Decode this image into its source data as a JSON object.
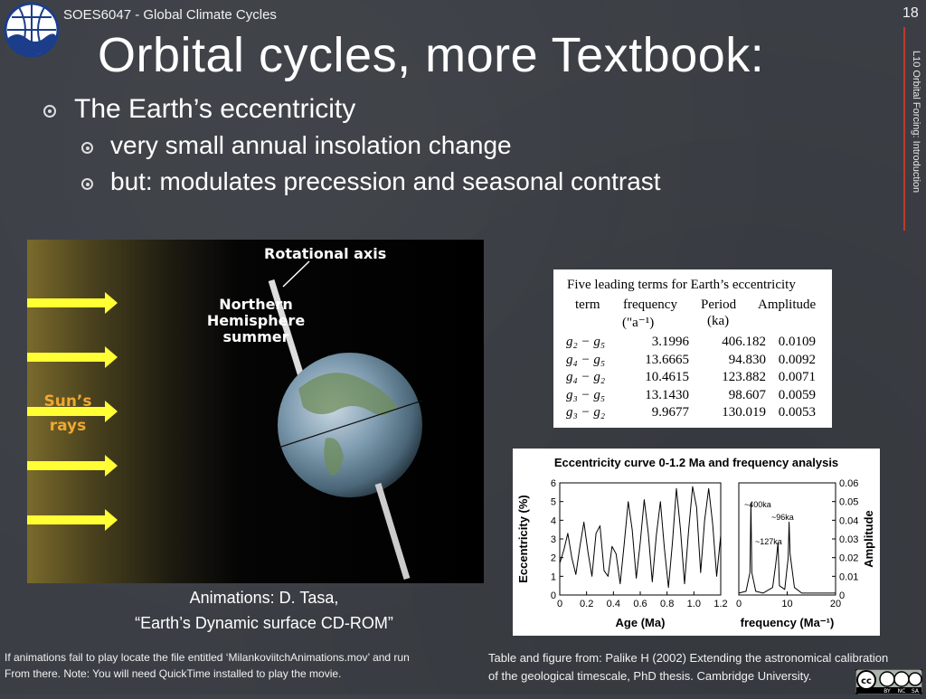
{
  "header": {
    "course": "SOES6047 - Global Climate Cycles",
    "slide_number": "18",
    "title": "Orbital cycles, more Textbook:",
    "side_label": "L10 Orbital Forcing: Introduction"
  },
  "bullets": {
    "main": "The Earth’s eccentricity",
    "sub1": "very small annual insolation change",
    "sub2": "but: modulates precession and seasonal contrast"
  },
  "earth_figure": {
    "rotational_axis": "Rotational axis",
    "nh_line1": "Northern",
    "nh_line2": "Hemisphere",
    "nh_line3": "summer",
    "sun_line1": "Sun’s",
    "sun_line2": "rays",
    "sun_color": "#f0a830",
    "arrow_color": "#ffff33"
  },
  "credits": {
    "animation_line1": "Animations: D. Tasa,",
    "animation_line2": "“Earth’s Dynamic surface CD-ROM”",
    "bottom_left_line1": "If animations fail to play locate the file entitled ‘MilankoviitchAnimations.mov’ and run",
    "bottom_left_line2": "From there. Note: You will need QuickTime installed to play the movie.",
    "bottom_right_line1": "Table and figure from: Palike H (2002) Extending the astronomical calibration",
    "bottom_right_line2": "of the geological timescale, PhD thesis. Cambridge University."
  },
  "table": {
    "caption": "Five leading terms for Earth’s eccentricity",
    "headers": [
      "term",
      "frequency",
      "Period",
      "Amplitude"
    ],
    "sub_headers": [
      "",
      "(\"a⁻¹)",
      "(ka)",
      ""
    ],
    "rows": [
      [
        "g₂ − g₅",
        "3.1996",
        "406.182",
        "0.0109"
      ],
      [
        "g₄ − g₅",
        "13.6665",
        "94.830",
        "0.0092"
      ],
      [
        "g₄ − g₂",
        "10.4615",
        "123.882",
        "0.0071"
      ],
      [
        "g₃ − g₅",
        "13.1430",
        "98.607",
        "0.0059"
      ],
      [
        "g₃ − g₂",
        "9.9677",
        "130.019",
        "0.0053"
      ]
    ]
  },
  "chart_data": {
    "type": "line",
    "title": "Eccentricity curve 0-1.2 Ma and frequency analysis",
    "panels": [
      {
        "xlabel": "Age (Ma)",
        "ylabel": "Eccentricity (%)",
        "xlim": [
          0,
          1.2
        ],
        "ylim": [
          0,
          6
        ],
        "xticks": [
          "0",
          "0.2",
          "0.4",
          "0.6",
          "0.8",
          "1.0",
          "1.2"
        ],
        "yticks": [
          "0",
          "1",
          "2",
          "3",
          "4",
          "5",
          "6"
        ],
        "series": [
          {
            "x": [
              0,
              0.03,
              0.06,
              0.09,
              0.12,
              0.15,
              0.18,
              0.21,
              0.24,
              0.27,
              0.3,
              0.33,
              0.36,
              0.39,
              0.42,
              0.45,
              0.48,
              0.51,
              0.54,
              0.57,
              0.6,
              0.63,
              0.66,
              0.69,
              0.72,
              0.75,
              0.78,
              0.81,
              0.84,
              0.87,
              0.9,
              0.93,
              0.96,
              0.99,
              1.02,
              1.05,
              1.08,
              1.11,
              1.14,
              1.17,
              1.2
            ],
            "y": [
              1.7,
              2.4,
              3.3,
              2.0,
              1.1,
              2.6,
              3.9,
              2.3,
              1.0,
              3.3,
              3.7,
              1.3,
              1.0,
              2.6,
              2.2,
              0.6,
              2.7,
              5.0,
              3.5,
              0.9,
              2.8,
              5.1,
              3.3,
              0.7,
              3.2,
              5.0,
              2.5,
              0.4,
              2.8,
              5.7,
              3.5,
              0.6,
              3.4,
              5.8,
              4.7,
              1.2,
              4.0,
              5.7,
              3.8,
              1.0,
              3.2
            ]
          }
        ]
      },
      {
        "xlabel": "frequency (Ma⁻¹)",
        "ylabel": "Amplitude",
        "xlim": [
          0,
          20
        ],
        "ylim": [
          0,
          0.06
        ],
        "xticks": [
          "0",
          "10",
          "20"
        ],
        "yticks": [
          "0",
          "0.01",
          "0.02",
          "0.03",
          "0.04",
          "0.05",
          "0.06"
        ],
        "annotations": [
          "~400ka",
          "~96ka",
          "~127ka"
        ],
        "series": [
          {
            "x": [
              0,
              1.5,
              2.3,
              2.5,
              2.7,
              3.5,
              5,
              7,
              7.6,
              7.9,
              8.1,
              8.4,
              9.5,
              10.2,
              10.4,
              10.6,
              11.5,
              13,
              16,
              20
            ],
            "y": [
              0.001,
              0.002,
              0.012,
              0.049,
              0.012,
              0.002,
              0.001,
              0.004,
              0.016,
              0.023,
              0.028,
              0.005,
              0.003,
              0.02,
              0.039,
              0.022,
              0.004,
              0.001,
              0.001,
              0.001
            ]
          }
        ]
      }
    ]
  },
  "license": {
    "cc": "cc",
    "by": "BY",
    "nc": "NC",
    "sa": "SA"
  }
}
